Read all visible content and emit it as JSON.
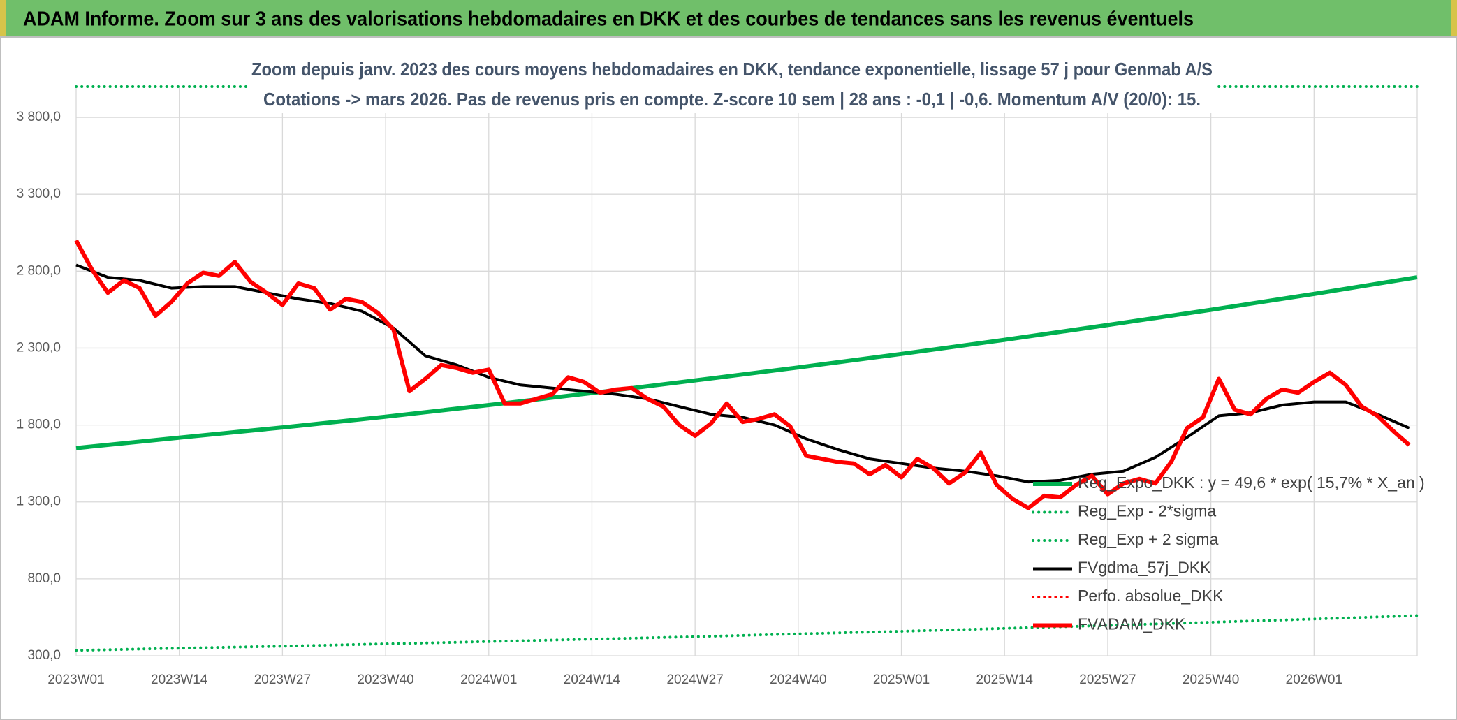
{
  "header": {
    "title": "ADAM Informe. Zoom sur 3 ans des valorisations hebdomadaires en DKK et des courbes de tendances sans les revenus éventuels"
  },
  "chart_data": {
    "type": "line",
    "title": "Zoom depuis janv. 2023 des cours moyens hebdomadaires en DKK, tendance exponentielle, lissage 57 j pour Genmab A/S",
    "subtitle": "Cotations -> mars 2026. Pas de revenus pris en compte. Z-score 10 sem | 28 ans : -0,1 | -0,6. Momentum A/V (20/0): 15.",
    "xlim": [
      0,
      169
    ],
    "xticks": [
      {
        "value": 0,
        "label": "2023W01"
      },
      {
        "value": 13,
        "label": "2023W14"
      },
      {
        "value": 26,
        "label": "2023W27"
      },
      {
        "value": 39,
        "label": "2023W40"
      },
      {
        "value": 52,
        "label": "2024W01"
      },
      {
        "value": 65,
        "label": "2024W14"
      },
      {
        "value": 78,
        "label": "2024W27"
      },
      {
        "value": 91,
        "label": "2024W40"
      },
      {
        "value": 104,
        "label": "2025W01"
      },
      {
        "value": 117,
        "label": "2025W14"
      },
      {
        "value": 130,
        "label": "2025W27"
      },
      {
        "value": 143,
        "label": "2025W40"
      },
      {
        "value": 156,
        "label": "2026W01"
      }
    ],
    "ylim": [
      300,
      4000
    ],
    "yticks": [
      {
        "value": 300,
        "label": "300,0"
      },
      {
        "value": 800,
        "label": "800,0"
      },
      {
        "value": 1300,
        "label": "1 300,0"
      },
      {
        "value": 1800,
        "label": "1 800,0"
      },
      {
        "value": 2300,
        "label": "2 300,0"
      },
      {
        "value": 2800,
        "label": "2 800,0"
      },
      {
        "value": 3300,
        "label": "3 300,0"
      },
      {
        "value": 3800,
        "label": "3 800,0"
      }
    ],
    "grid": true,
    "legend": "lower right",
    "series": [
      {
        "name": "Reg_Expo_DKK : y = 49,6 * exp( 15,7% *  X_an )",
        "color": "#00b050",
        "line_style": "thick",
        "x": [
          0,
          13,
          26,
          39,
          52,
          65,
          78,
          91,
          104,
          117,
          130,
          143,
          156,
          169
        ],
        "values": [
          1650,
          1718,
          1784,
          1854,
          1930,
          2008,
          2090,
          2174,
          2262,
          2354,
          2450,
          2549,
          2652,
          2760
        ]
      },
      {
        "name": "Reg_Exp - 2*sigma",
        "color": "#00b050",
        "line_style": "dotted",
        "x": [
          0,
          13,
          26,
          39,
          52,
          65,
          78,
          91,
          104,
          117,
          130,
          143,
          156,
          169
        ],
        "values": [
          335,
          349,
          362,
          377,
          392,
          408,
          424,
          442,
          459,
          478,
          497,
          518,
          539,
          561
        ]
      },
      {
        "name": "Reg_Exp + 2 sigma",
        "color": "#00b050",
        "line_style": "dotted",
        "x": [
          0,
          169
        ],
        "values": [
          4000,
          4000
        ]
      },
      {
        "name": "FVgdma_57j_DKK",
        "color": "#000000",
        "line_style": "solid",
        "x": [
          0,
          4,
          8,
          12,
          16,
          20,
          24,
          28,
          32,
          36,
          40,
          44,
          48,
          52,
          56,
          60,
          64,
          68,
          72,
          76,
          80,
          84,
          88,
          92,
          96,
          100,
          104,
          108,
          112,
          116,
          120,
          124,
          128,
          132,
          136,
          140,
          144,
          148,
          152,
          156,
          160,
          164,
          168
        ],
        "values": [
          2840,
          2760,
          2740,
          2690,
          2700,
          2700,
          2660,
          2620,
          2590,
          2540,
          2430,
          2250,
          2190,
          2110,
          2060,
          2040,
          2020,
          2000,
          1970,
          1920,
          1870,
          1850,
          1800,
          1710,
          1640,
          1580,
          1550,
          1520,
          1500,
          1470,
          1430,
          1440,
          1480,
          1500,
          1590,
          1720,
          1860,
          1880,
          1930,
          1950,
          1950,
          1870,
          1780
        ]
      },
      {
        "name": "Perfo. absolue_DKK",
        "color": "#ff0000",
        "line_style": "dotted",
        "x": [],
        "values": []
      },
      {
        "name": "FVADAM_DKK",
        "color": "#ff0000",
        "line_style": "thick",
        "x": [
          0,
          2,
          4,
          6,
          8,
          10,
          12,
          14,
          16,
          18,
          20,
          22,
          24,
          26,
          28,
          30,
          32,
          34,
          36,
          38,
          40,
          42,
          44,
          46,
          48,
          50,
          52,
          54,
          56,
          58,
          60,
          62,
          64,
          66,
          68,
          70,
          72,
          74,
          76,
          78,
          80,
          82,
          84,
          86,
          88,
          90,
          92,
          94,
          96,
          98,
          100,
          102,
          104,
          106,
          108,
          110,
          112,
          114,
          116,
          118,
          120,
          122,
          124,
          126,
          128,
          130,
          132,
          134,
          136,
          138,
          140,
          142,
          144,
          146,
          148,
          150,
          152,
          154,
          156,
          158,
          160,
          162,
          164,
          166,
          168
        ],
        "values": [
          3000,
          2810,
          2660,
          2740,
          2690,
          2510,
          2600,
          2720,
          2790,
          2770,
          2860,
          2730,
          2660,
          2580,
          2720,
          2690,
          2550,
          2620,
          2600,
          2530,
          2420,
          2020,
          2100,
          2190,
          2170,
          2140,
          2160,
          1940,
          1940,
          1970,
          2000,
          2110,
          2080,
          2010,
          2030,
          2040,
          1970,
          1920,
          1800,
          1730,
          1810,
          1940,
          1820,
          1840,
          1870,
          1790,
          1600,
          1580,
          1560,
          1550,
          1480,
          1540,
          1460,
          1580,
          1520,
          1420,
          1490,
          1620,
          1410,
          1320,
          1260,
          1340,
          1330,
          1410,
          1470,
          1350,
          1420,
          1450,
          1420,
          1560,
          1780,
          1850,
          2100,
          1900,
          1870,
          1970,
          2030,
          2010,
          2080,
          2140,
          2060,
          1920,
          1860,
          1760,
          1670
        ]
      }
    ]
  }
}
